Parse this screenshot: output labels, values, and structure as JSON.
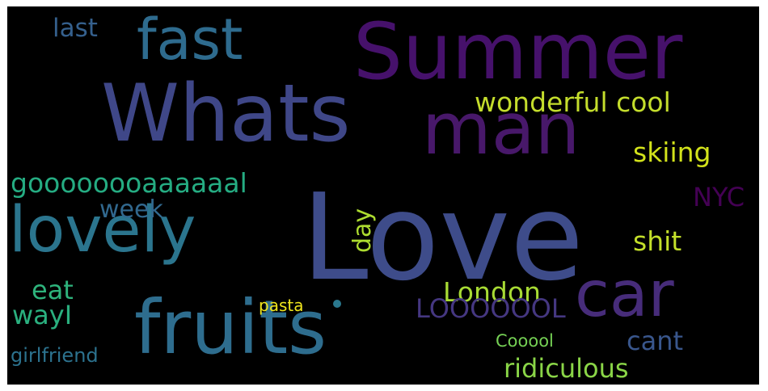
{
  "words": [
    {
      "text": "Love",
      "color": "#3e4c8a"
    },
    {
      "text": "Summer",
      "color": "#46116b"
    },
    {
      "text": "Whats",
      "color": "#3f4788"
    },
    {
      "text": "man",
      "color": "#48186a"
    },
    {
      "text": "fast",
      "color": "#2e6b8e"
    },
    {
      "text": "lovely",
      "color": "#2b758e"
    },
    {
      "text": "fruits",
      "color": "#2e6d8e"
    },
    {
      "text": "car",
      "color": "#472c7a"
    },
    {
      "text": "goooooooaaaaaal",
      "color": "#25ac82"
    },
    {
      "text": "wonderful cool",
      "color": "#c4dd2c"
    },
    {
      "text": "skiing",
      "color": "#d2e21b"
    },
    {
      "text": "shit",
      "color": "#c3df2a"
    },
    {
      "text": "London",
      "color": "#a8db34"
    },
    {
      "text": "ridiculous",
      "color": "#8ad547"
    },
    {
      "text": "LOOOOOOL",
      "color": "#453781"
    },
    {
      "text": "cant",
      "color": "#39568c"
    },
    {
      "text": "last",
      "color": "#35608d"
    },
    {
      "text": "week",
      "color": "#31688e"
    },
    {
      "text": "eat",
      "color": "#2eb37c"
    },
    {
      "text": "wayI",
      "color": "#2ab07f"
    },
    {
      "text": "girlfriend",
      "color": "#2c728e"
    },
    {
      "text": "pasta",
      "color": "#f0e51d"
    },
    {
      "text": "Cooool",
      "color": "#75d054"
    },
    {
      "text": "day",
      "color": "#addc30"
    },
    {
      "text": "NYC",
      "color": "#440154"
    }
  ],
  "dot_color": "#2a788e"
}
